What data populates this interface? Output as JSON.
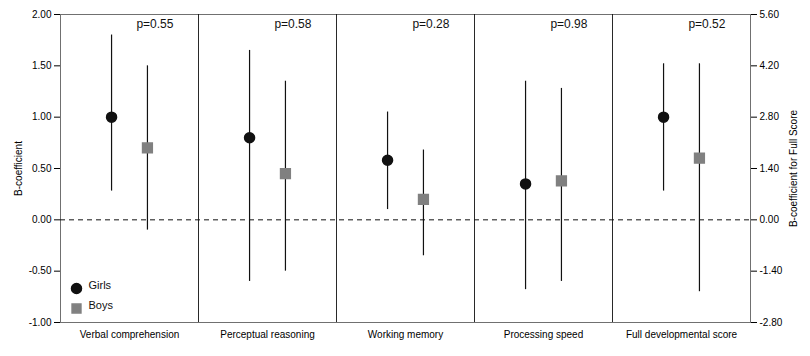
{
  "chart_data": {
    "type": "errorbar",
    "categories": [
      "Verbal comprehension",
      "Perceptual reasoning",
      "Working memory",
      "Processing speed",
      "Full developmental score"
    ],
    "series": [
      {
        "name": "Girls",
        "color": "#111111",
        "marker": "circle",
        "values": [
          1.0,
          0.8,
          0.58,
          0.35,
          1.0
        ],
        "upper": [
          1.8,
          1.65,
          1.05,
          1.35,
          1.52
        ],
        "lower": [
          0.28,
          -0.6,
          0.1,
          -0.68,
          0.28
        ]
      },
      {
        "name": "Boys",
        "color": "#808080",
        "marker": "square",
        "values": [
          0.7,
          0.45,
          0.2,
          0.38,
          0.6
        ],
        "upper": [
          1.5,
          1.35,
          0.68,
          1.28,
          1.52
        ],
        "lower": [
          -0.1,
          -0.5,
          -0.35,
          -0.6,
          -0.7
        ]
      }
    ],
    "annotations": [
      "p=0.55",
      "p=0.58",
      "p=0.28",
      "p=0.98",
      "p=0.52"
    ],
    "reference_y": 0.0,
    "color": "#111111",
    "ylim": [
      -1.0,
      2.0
    ],
    "yticks": [
      {
        "value": -1.0,
        "label": "-1.00"
      },
      {
        "value": -0.5,
        "label": "-0.50"
      },
      {
        "value": 0.0,
        "label": "0.00"
      },
      {
        "value": 0.5,
        "label": "0.50"
      },
      {
        "value": 1.0,
        "label": "1.00"
      },
      {
        "value": 1.5,
        "label": "1.50"
      },
      {
        "value": 2.0,
        "label": "2.00"
      }
    ],
    "y_label": "B-coefficient",
    "y2lim": [
      -2.8,
      5.6
    ],
    "y2ticks": [
      {
        "value": -2.8,
        "label": "-2.80"
      },
      {
        "value": -1.4,
        "label": "-1.40"
      },
      {
        "value": 0.0,
        "label": "0.00"
      },
      {
        "value": 1.4,
        "label": "1.40"
      },
      {
        "value": 2.8,
        "label": "2.80"
      },
      {
        "value": 4.2,
        "label": "4.20"
      },
      {
        "value": 5.6,
        "label": "5.60"
      }
    ],
    "y2_label": "B-coefficient for Full Score",
    "legend": "lower left",
    "grid": false
  }
}
